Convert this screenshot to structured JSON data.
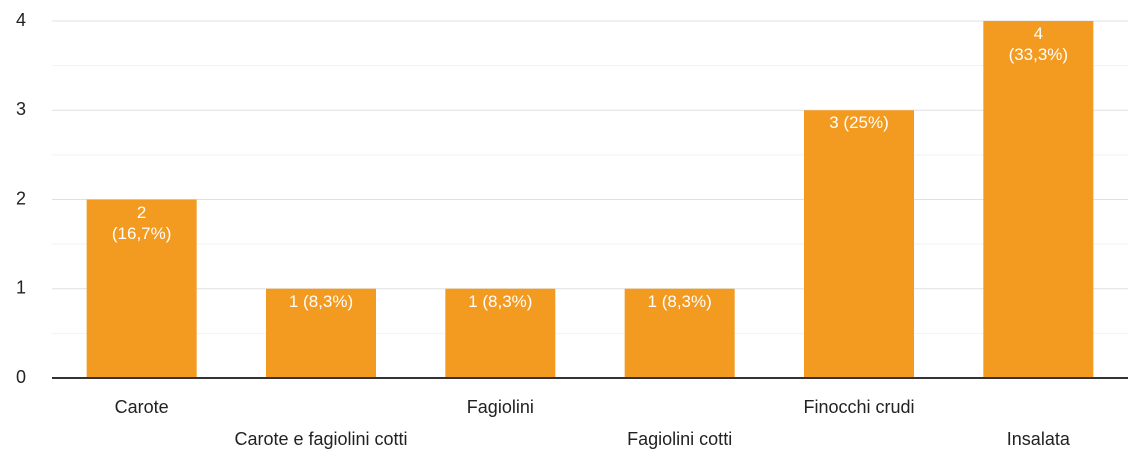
{
  "chart_data": {
    "type": "bar",
    "categories": [
      "Carote",
      "Carote e fagiolini cotti",
      "Fagiolini",
      "Fagiolini cotti",
      "Finocchi crudi",
      "Insalata"
    ],
    "values": [
      2,
      1,
      1,
      1,
      3,
      4
    ],
    "value_labels": [
      "2\n(16,7%)",
      "1 (8,3%)",
      "1 (8,3%)",
      "1 (8,3%)",
      "3 (25%)",
      "4\n(33,3%)"
    ],
    "color": "#f39a21",
    "ylim": [
      0,
      4
    ],
    "yticks": [
      0,
      1,
      2,
      3,
      4
    ],
    "minor_yticks": [
      0.5,
      1.5,
      2.5,
      3.5
    ],
    "grid": true
  }
}
